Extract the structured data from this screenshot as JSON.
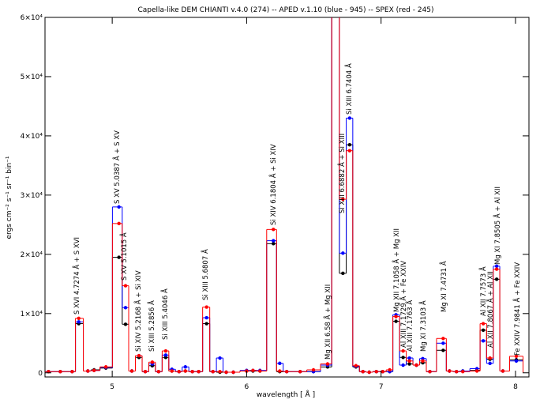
{
  "chart_data": {
    "type": "step",
    "title": "Capella-like DEM   CHIANTI v.4.0 (274) -- APED v.1.10 (blue - 945) -- SPEX (red - 245)",
    "x_label": "wavelength [ Å ]",
    "y_label": "ergs cm⁻² s⁻¹ sr⁻¹ bin⁻¹",
    "xlim": [
      4.5,
      8.1
    ],
    "xticks": [
      5,
      6,
      7,
      8
    ],
    "ylim": [
      -700,
      60000
    ],
    "yticks": [
      0,
      {
        "value": 10000,
        "label": "1×10⁴"
      },
      {
        "value": 20000,
        "label": "2×10⁴"
      },
      {
        "value": 30000,
        "label": "3×10⁴"
      },
      {
        "value": 40000,
        "label": "4×10⁴"
      },
      {
        "value": 50000,
        "label": "5×10⁴"
      },
      {
        "value": 60000,
        "label": "6×10⁴"
      }
    ],
    "x": [
      4.526,
      4.614,
      4.702,
      4.751,
      4.819,
      4.865,
      4.953,
      5.05,
      5.099,
      5.146,
      5.199,
      5.246,
      5.298,
      5.345,
      5.398,
      5.444,
      5.497,
      5.544,
      5.596,
      5.643,
      5.702,
      5.749,
      5.801,
      5.848,
      5.901,
      6.0,
      6.047,
      6.099,
      6.199,
      6.246,
      6.298,
      6.398,
      6.497,
      6.602,
      6.664,
      6.716,
      6.766,
      6.813,
      6.865,
      6.912,
      6.965,
      7.012,
      7.064,
      7.111,
      7.164,
      7.211,
      7.263,
      7.31,
      7.363,
      7.462,
      7.509,
      7.561,
      7.608,
      7.713,
      7.76,
      7.81,
      7.86,
      7.906,
      8.006
    ],
    "series": [
      {
        "color": "#000000",
        "values": [
          200,
          200,
          200,
          8300,
          300,
          500,
          800,
          19500,
          8200,
          300,
          2600,
          200,
          1200,
          200,
          2600,
          300,
          200,
          300,
          200,
          200,
          8300,
          200,
          100,
          100,
          100,
          300,
          300,
          300,
          21800,
          200,
          200,
          200,
          200,
          1000,
          65000,
          16800,
          38500,
          1000,
          200,
          100,
          200,
          200,
          200,
          8700,
          2600,
          1500,
          1300,
          1700,
          200,
          3800,
          300,
          200,
          300,
          400,
          7200,
          2300,
          15800,
          300,
          2200
        ]
      },
      {
        "color": "#0000ff",
        "values": [
          200,
          200,
          200,
          8600,
          300,
          400,
          900,
          28000,
          11000,
          300,
          2900,
          200,
          1500,
          200,
          3000,
          600,
          200,
          1000,
          200,
          200,
          9300,
          200,
          2500,
          100,
          100,
          400,
          400,
          400,
          22300,
          1600,
          200,
          200,
          200,
          1300,
          65000,
          20200,
          43000,
          1100,
          200,
          100,
          200,
          200,
          200,
          9800,
          1300,
          2500,
          1300,
          2400,
          200,
          5000,
          300,
          200,
          300,
          700,
          5400,
          1600,
          18000,
          300,
          2000
        ]
      },
      {
        "color": "#ff0000",
        "values": [
          200,
          200,
          200,
          9200,
          300,
          400,
          1000,
          25200,
          14700,
          300,
          2900,
          200,
          1800,
          200,
          3700,
          300,
          200,
          300,
          200,
          200,
          11100,
          200,
          200,
          100,
          100,
          300,
          400,
          300,
          24200,
          300,
          200,
          200,
          500,
          1500,
          65000,
          29300,
          37500,
          1200,
          200,
          100,
          200,
          200,
          500,
          9500,
          3700,
          2000,
          1300,
          2000,
          200,
          5800,
          300,
          200,
          200,
          300,
          8300,
          2500,
          17500,
          300,
          2800
        ]
      }
    ],
    "annotations": [
      "S  XVI 4.7274 Å + S  XVI",
      "S  XV 5.0387 Å + S  XV",
      "S  XV 5.1015 Å",
      "Si XIV 5.2168 Å + Si XIV",
      "Si XIII 5.2856 Å",
      "Si XIII 5.4046 Å",
      "Si XIII 5.6807 Å",
      "Si XIV 6.1804 Å + Si XIV",
      "Mg XII 6.58 Å + Mg XII",
      "Si XIII 6.6882 Å + Si XIII",
      "Si XIII 6.7404 Å",
      "Mg XII 7.1058 Å + Mg XII",
      "Al XIII 7.1729 Å + Fe XXIV",
      "Al XIII 7.1763 Å",
      "Mg XI 7.3103 Å",
      "Mg XI 7.4731 Å",
      "Al XII 7.7573 Å",
      "Al XII 7.8067 Å + Al XII",
      "Mg XI 7.8505 Å + Al XII",
      "Fe XXIV 7.9841 Å + Fe XXIV"
    ]
  }
}
